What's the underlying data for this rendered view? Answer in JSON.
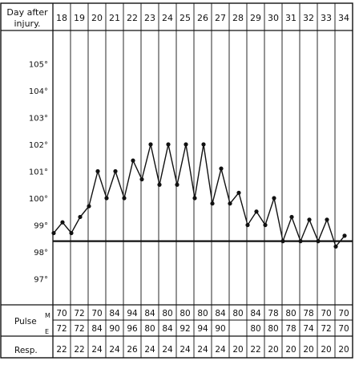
{
  "chart_data": {
    "type": "line",
    "header_label_line1": "Day after",
    "header_label_line2": "injury.",
    "days": [
      "18",
      "19",
      "20",
      "21",
      "22",
      "23",
      "24",
      "25",
      "26",
      "27",
      "28",
      "29",
      "30",
      "31",
      "32",
      "33",
      "34"
    ],
    "y_ticks": [
      {
        "value": 105,
        "label": "105°"
      },
      {
        "value": 104,
        "label": "104°"
      },
      {
        "value": 103,
        "label": "103°"
      },
      {
        "value": 102,
        "label": "102°"
      },
      {
        "value": 101,
        "label": "101°"
      },
      {
        "value": 100,
        "label": "100°"
      },
      {
        "value": 99,
        "label": "99°"
      },
      {
        "value": 98,
        "label": "98°"
      },
      {
        "value": 97,
        "label": "97°"
      }
    ],
    "ylim": [
      96.5,
      106
    ],
    "normal_line": 98.4,
    "series": [
      {
        "values": [
          [
            18.0,
            98.7
          ],
          [
            18.5,
            99.1
          ],
          [
            19.0,
            98.7
          ],
          [
            19.5,
            99.3
          ],
          [
            20.0,
            99.7
          ],
          [
            20.5,
            101.0
          ],
          [
            21.0,
            100.0
          ],
          [
            21.5,
            101.0
          ],
          [
            22.0,
            100.0
          ],
          [
            22.5,
            101.4
          ],
          [
            23.0,
            100.7
          ],
          [
            23.5,
            102.0
          ],
          [
            24.0,
            100.5
          ],
          [
            24.5,
            102.0
          ],
          [
            25.0,
            100.5
          ],
          [
            25.5,
            102.0
          ],
          [
            26.0,
            100.0
          ],
          [
            26.5,
            102.0
          ],
          [
            27.0,
            99.8
          ],
          [
            27.5,
            101.1
          ],
          [
            28.0,
            99.8
          ],
          [
            28.5,
            100.2
          ],
          [
            29.0,
            99.0
          ],
          [
            29.5,
            99.5
          ],
          [
            30.0,
            99.0
          ],
          [
            30.5,
            100.0
          ],
          [
            31.0,
            98.4
          ],
          [
            31.5,
            99.3
          ],
          [
            32.0,
            98.4
          ],
          [
            32.5,
            99.2
          ],
          [
            33.0,
            98.4
          ],
          [
            33.5,
            99.2
          ],
          [
            34.0,
            98.2
          ],
          [
            34.5,
            98.6
          ]
        ]
      }
    ],
    "pulse_label": "Pulse",
    "pulse_m_label": "M",
    "pulse_e_label": "E",
    "pulse_m": [
      "70",
      "72",
      "70",
      "84",
      "94",
      "84",
      "80",
      "80",
      "80",
      "84",
      "80",
      "84",
      "78",
      "80",
      "78",
      "70",
      "70"
    ],
    "pulse_e": [
      "72",
      "72",
      "84",
      "90",
      "96",
      "80",
      "84",
      "92",
      "94",
      "90",
      "",
      "80",
      "80",
      "78",
      "74",
      "72",
      "70"
    ],
    "resp_label": "Resp.",
    "resp": [
      "22",
      "22",
      "24",
      "24",
      "26",
      "24",
      "24",
      "24",
      "24",
      "24",
      "20",
      "22",
      "20",
      "20",
      "20",
      "20",
      "20"
    ]
  }
}
